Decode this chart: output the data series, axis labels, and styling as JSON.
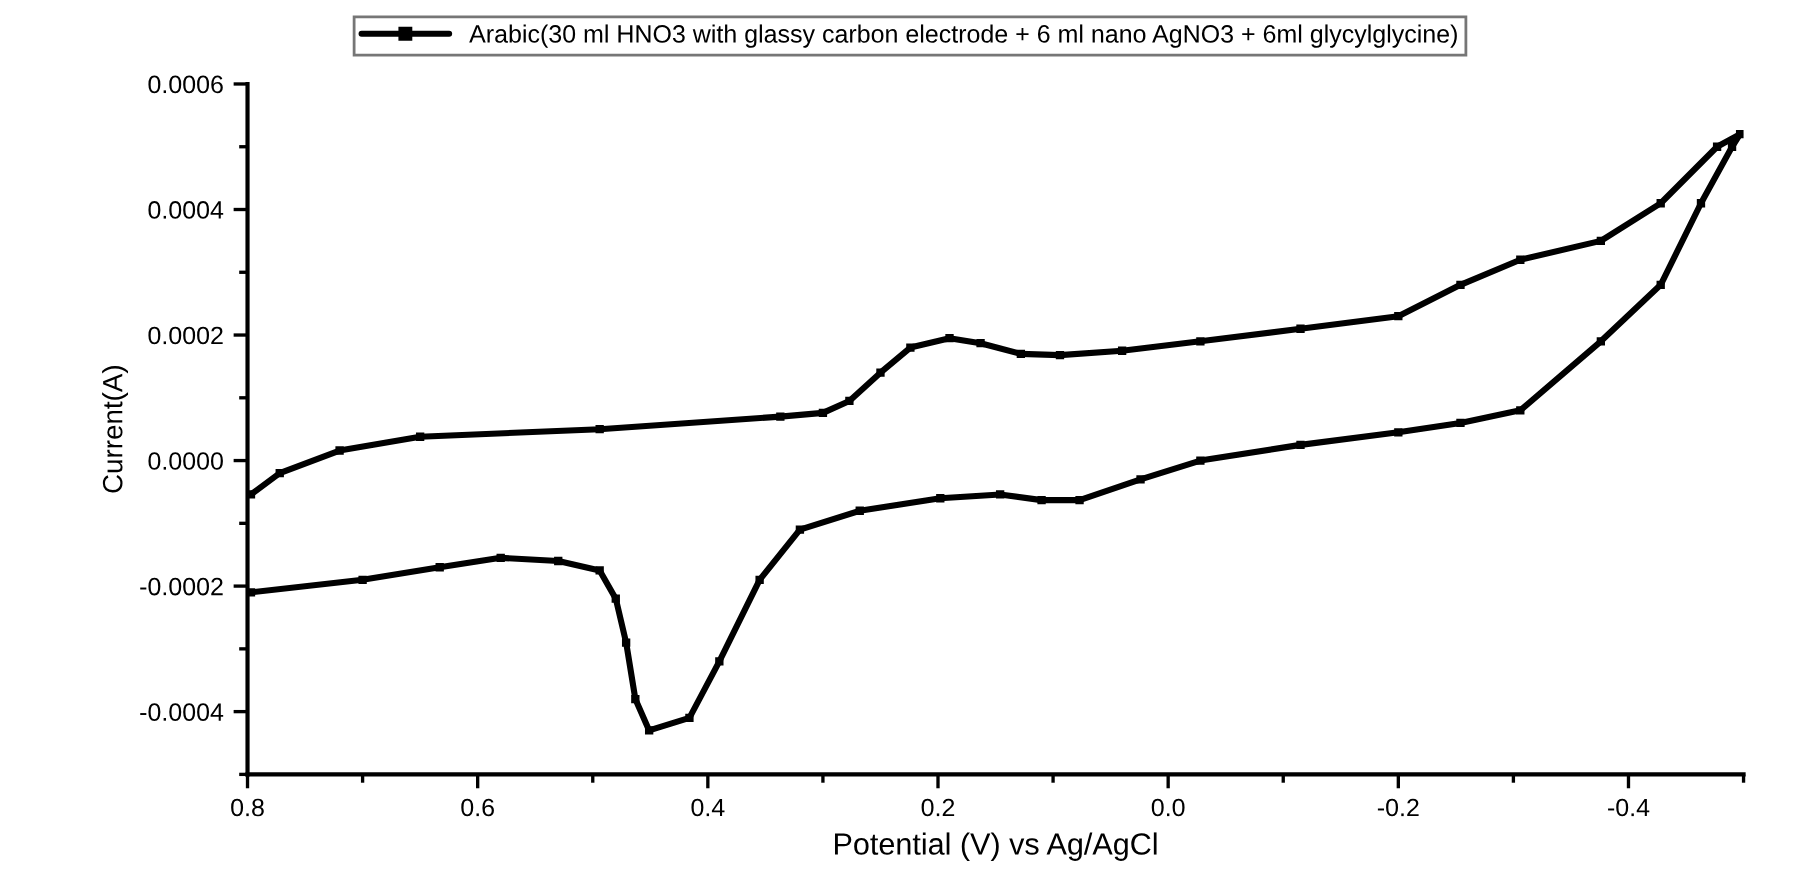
{
  "chart_data": {
    "type": "line",
    "xlabel": "Potential (V) vs Ag/AgCl",
    "ylabel": "Current(A)",
    "xlim": [
      0.8,
      -0.5
    ],
    "ylim": [
      -0.0005,
      0.0006
    ],
    "xticks": [
      {
        "value": 0.8,
        "label": "0.8"
      },
      {
        "value": 0.6,
        "label": "0.6"
      },
      {
        "value": 0.4,
        "label": "0.4"
      },
      {
        "value": 0.2,
        "label": "0.2"
      },
      {
        "value": 0.0,
        "label": "0.0"
      },
      {
        "value": -0.2,
        "label": "-0.2"
      },
      {
        "value": -0.4,
        "label": "-0.4"
      }
    ],
    "yticks": [
      {
        "value": -0.0004,
        "label": "-0.0004"
      },
      {
        "value": -0.0002,
        "label": "-0.0002"
      },
      {
        "value": 0.0,
        "label": "0.0000"
      },
      {
        "value": 0.0002,
        "label": "0.0002"
      },
      {
        "value": 0.0004,
        "label": "0.0004"
      },
      {
        "value": 0.0006,
        "label": "0.0006"
      }
    ],
    "grid": false,
    "legend": "top",
    "marker": "square",
    "line_style": "solid",
    "series": [
      {
        "name": "Arabic(30 ml HNO3 with glassy carbon electrode + 6 ml nano AgNO3 + 6ml glycylglycine)",
        "color": "#000000",
        "x": [
          0.797,
          0.772,
          0.72,
          0.65,
          0.494,
          0.337,
          0.3,
          0.277,
          0.25,
          0.224,
          0.19,
          0.163,
          0.128,
          0.094,
          0.04,
          -0.028,
          -0.115,
          -0.2,
          -0.254,
          -0.306,
          -0.376,
          -0.428,
          -0.477,
          -0.497,
          -0.49,
          -0.463,
          -0.428,
          -0.376,
          -0.306,
          -0.254,
          -0.2,
          -0.115,
          -0.028,
          0.024,
          0.077,
          0.11,
          0.146,
          0.198,
          0.268,
          0.32,
          0.355,
          0.39,
          0.416,
          0.451,
          0.463,
          0.471,
          0.48,
          0.494,
          0.53,
          0.58,
          0.633,
          0.7,
          0.797
        ],
        "values": [
          -5.4e-05,
          -2e-05,
          1.6e-05,
          3.8e-05,
          5e-05,
          7e-05,
          7.6e-05,
          9.5e-05,
          0.00014,
          0.00018,
          0.000195,
          0.000187,
          0.00017,
          0.000168,
          0.000175,
          0.00019,
          0.00021,
          0.00023,
          0.00028,
          0.00032,
          0.00035,
          0.00041,
          0.0005,
          0.00052,
          0.0005,
          0.00041,
          0.00028,
          0.00019,
          8e-05,
          6e-05,
          4.5e-05,
          2.5e-05,
          0.0,
          -3e-05,
          -6.3e-05,
          -6.3e-05,
          -5.4e-05,
          -6e-05,
          -8e-05,
          -0.00011,
          -0.00019,
          -0.00032,
          -0.00041,
          -0.00043,
          -0.00038,
          -0.00029,
          -0.00022,
          -0.000175,
          -0.00016,
          -0.000155,
          -0.00017,
          -0.00019,
          -0.00021
        ]
      }
    ]
  }
}
